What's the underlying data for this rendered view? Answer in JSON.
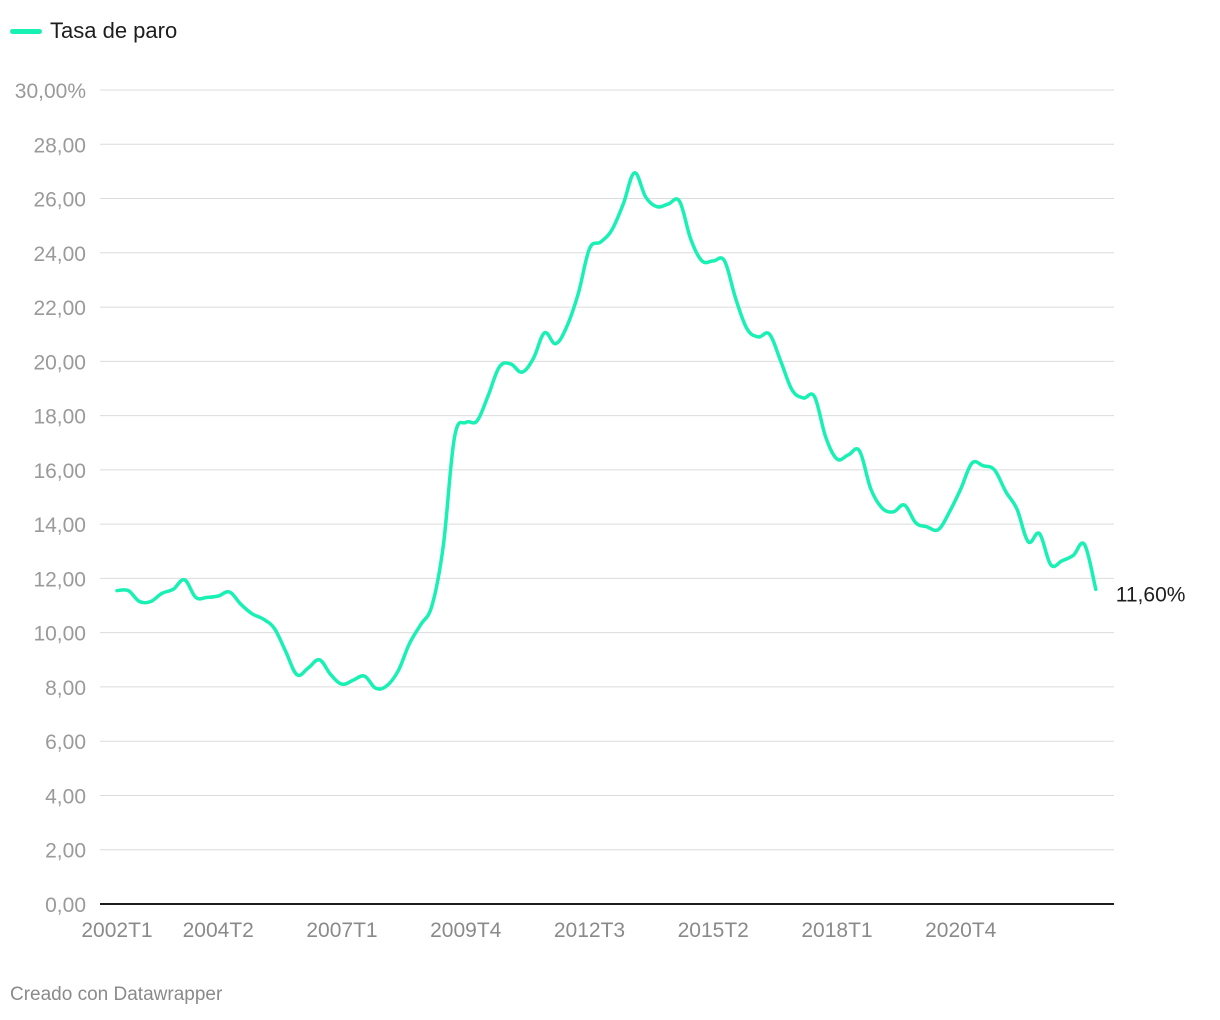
{
  "legend": {
    "label": "Tasa de paro",
    "color": "#19f0b4"
  },
  "credit": "Creado con Datawrapper",
  "chart_data": {
    "type": "line",
    "series": [
      {
        "name": "Tasa de paro",
        "color": "#19f0b4",
        "end_label": "11,60%",
        "values": [
          11.55,
          11.55,
          11.15,
          11.15,
          11.45,
          11.6,
          11.95,
          11.3,
          11.3,
          11.35,
          11.5,
          11.05,
          10.7,
          10.5,
          10.15,
          9.3,
          8.45,
          8.7,
          9.0,
          8.45,
          8.1,
          8.25,
          8.4,
          7.95,
          8.05,
          8.6,
          9.6,
          10.3,
          11.0,
          13.2,
          17.2,
          17.75,
          17.8,
          18.75,
          19.8,
          19.9,
          19.6,
          20.1,
          21.05,
          20.65,
          21.3,
          22.5,
          24.15,
          24.4,
          24.85,
          25.8,
          26.95,
          26.05,
          25.7,
          25.8,
          25.9,
          24.5,
          23.7,
          23.7,
          23.7,
          22.3,
          21.2,
          20.9,
          21.0,
          20.0,
          18.95,
          18.65,
          18.7,
          17.2,
          16.4,
          16.55,
          16.7,
          15.3,
          14.6,
          14.45,
          14.7,
          14.05,
          13.9,
          13.8,
          14.45,
          15.3,
          16.25,
          16.15,
          16.0,
          15.2,
          14.55,
          13.35,
          13.65,
          12.5,
          12.65,
          12.85,
          13.25,
          11.6
        ]
      }
    ],
    "x_tick_labels": [
      "2002T1",
      "2004T2",
      "2007T1",
      "2009T4",
      "2012T3",
      "2015T2",
      "2018T1",
      "2020T4"
    ],
    "x_tick_indices": [
      0,
      9,
      20,
      31,
      42,
      53,
      64,
      75
    ],
    "y_tick_labels": [
      "0,00",
      "2,00",
      "4,00",
      "6,00",
      "8,00",
      "10,00",
      "12,00",
      "14,00",
      "16,00",
      "18,00",
      "20,00",
      "22,00",
      "24,00",
      "26,00",
      "28,00",
      "30,00%"
    ],
    "y_tick_values": [
      0,
      2,
      4,
      6,
      8,
      10,
      12,
      14,
      16,
      18,
      20,
      22,
      24,
      26,
      28,
      30
    ],
    "ylim": [
      0,
      30
    ],
    "grid": true,
    "legend_position": "top-left"
  }
}
